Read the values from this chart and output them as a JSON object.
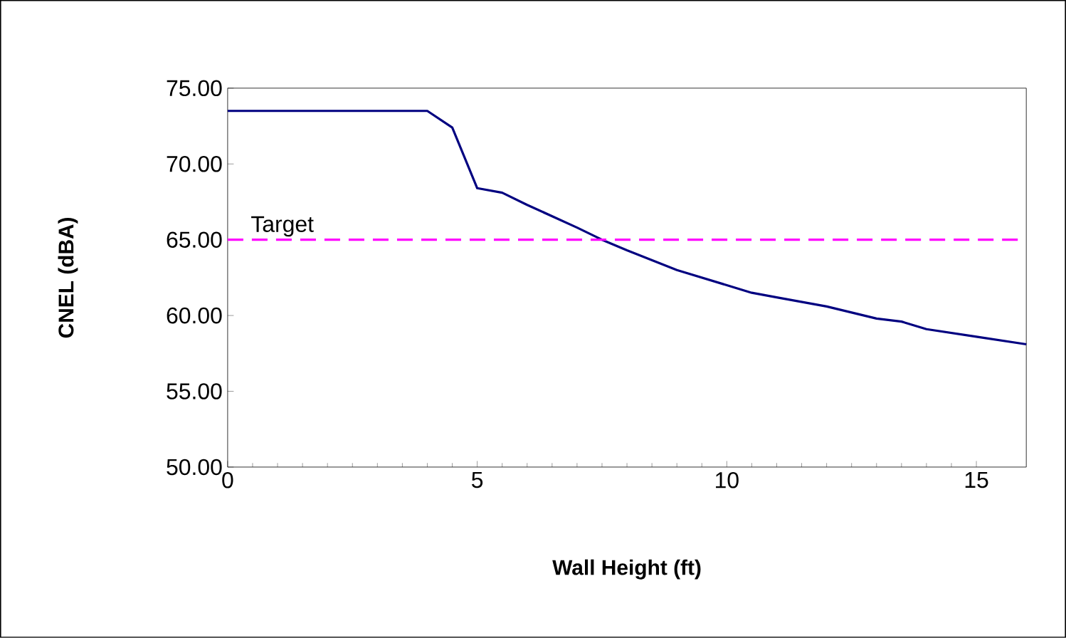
{
  "chart_data": {
    "type": "line",
    "xlabel": "Wall Height (ft)",
    "ylabel": "CNEL (dBA)",
    "x": [
      0,
      4,
      4.5,
      5,
      5.5,
      6,
      7,
      7.5,
      8,
      9,
      10,
      10.5,
      11,
      12,
      13,
      13.5,
      14,
      15,
      16
    ],
    "series": [
      {
        "color": "#000080",
        "values": [
          73.5,
          73.5,
          72.4,
          68.4,
          68.1,
          67.3,
          65.8,
          65.0,
          64.3,
          63.0,
          62.0,
          61.5,
          61.2,
          60.6,
          59.8,
          59.6,
          59.1,
          58.6,
          58.1
        ]
      }
    ],
    "xlim": [
      0,
      16
    ],
    "xticks": [
      0,
      5,
      10,
      15
    ],
    "ylim": [
      50,
      75
    ],
    "yticks": [
      {
        "value": 50,
        "label": "50.00"
      },
      {
        "value": 55,
        "label": "55.00"
      },
      {
        "value": 60,
        "label": "60.00"
      },
      {
        "value": 65,
        "label": "65.00"
      },
      {
        "value": 70,
        "label": "70.00"
      },
      {
        "value": 75,
        "label": "75.00"
      }
    ],
    "ref_lines": [
      {
        "axis": "y",
        "value": 65,
        "label": "Target",
        "color": "#ff00ff",
        "line_style": "dashed"
      }
    ],
    "grid": false,
    "legend": false,
    "marker": "none",
    "line_style": "solid"
  }
}
